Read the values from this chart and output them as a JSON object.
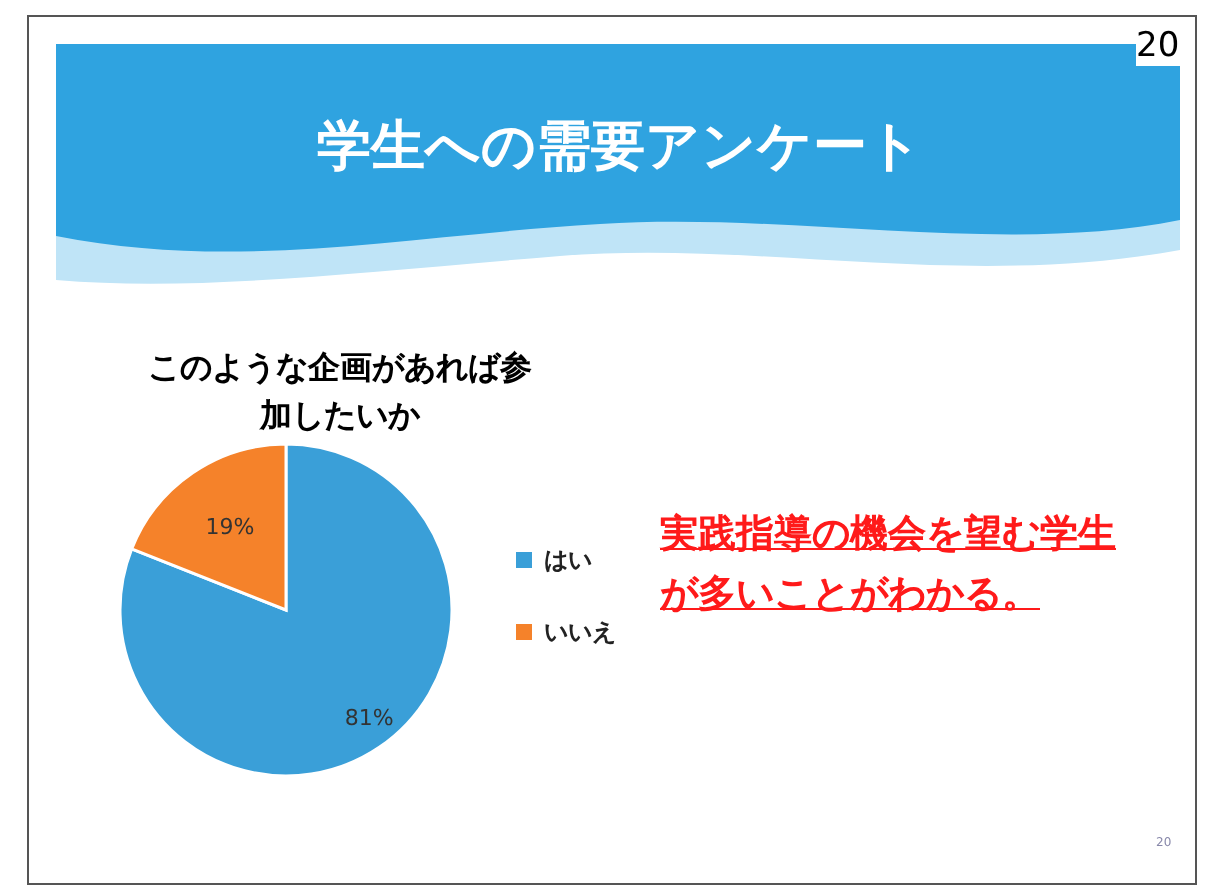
{
  "chart_data": {
    "type": "pie",
    "title": "学生への需要アンケート",
    "subtitle": "このような企画があれば参加したいか",
    "categories": [
      "はい",
      "いいえ"
    ],
    "values": [
      81,
      19
    ],
    "colors": [
      "#3a9fd8",
      "#f5822a"
    ],
    "value_labels": [
      "81%",
      "19%"
    ],
    "legend": "right",
    "annotations": [
      "実践指導の機会を望む学生が多いことがわかる。",
      "20",
      "20"
    ]
  }
}
